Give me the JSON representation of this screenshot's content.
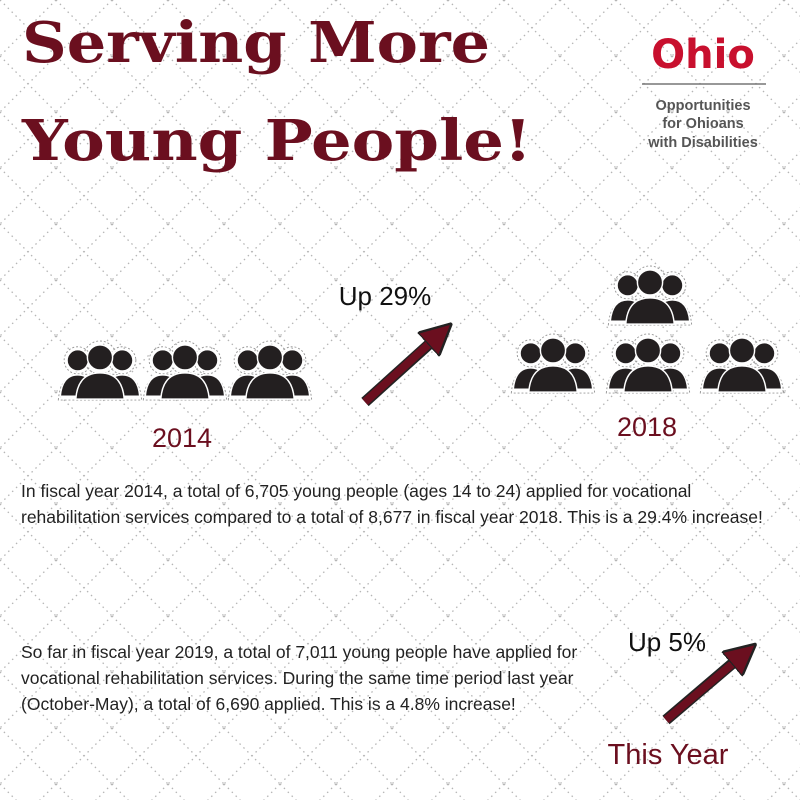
{
  "header": {
    "title_lines": [
      "Serving More",
      "Young People!"
    ]
  },
  "logo": {
    "name": "Ohio",
    "lines": [
      "Opportunities",
      "for Ohioans",
      "with Disabilities"
    ]
  },
  "comparison": {
    "change": "Up 29%",
    "from_year": "2014",
    "to_year": "2018",
    "text": "In fiscal year 2014, a total of 6,705 young people (ages 14 to 24) applied for vocational rehabilitation services compared to a total of 8,677 in fiscal year 2018. This is a 29.4% increase!"
  },
  "current": {
    "change": "Up 5%",
    "label": "This Year",
    "text": "So far in fiscal year 2019, a total of 7,011 young people have applied for vocational rehabilitation services. During the same time period last year (October-May), a total of 6,690 applied. This is a 4.8% increase!"
  }
}
